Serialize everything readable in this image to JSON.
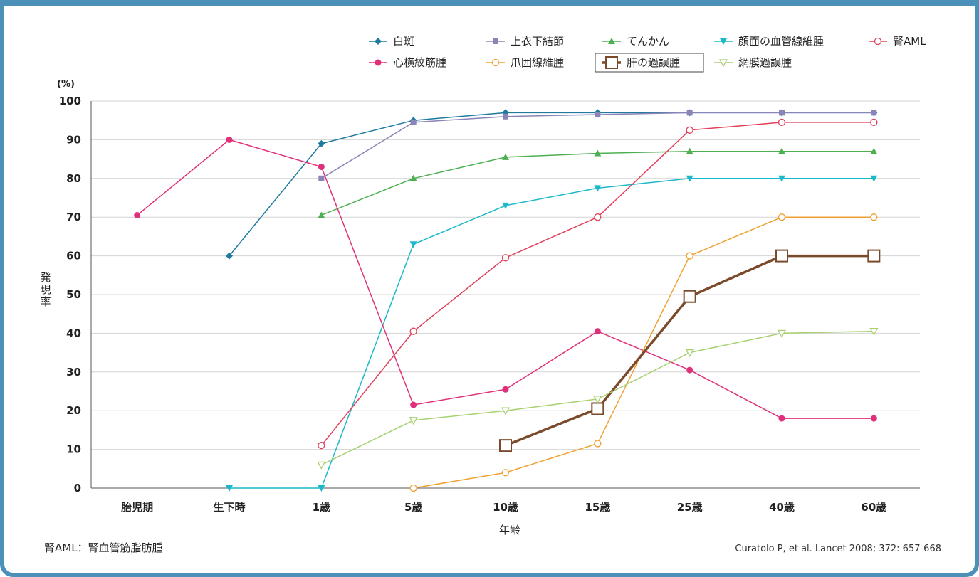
{
  "chart_data": {
    "type": "line",
    "ylabel": "発現率",
    "yunit": "(%)",
    "xlabel": "年齢",
    "ylim": [
      0,
      100
    ],
    "yticks": [
      0,
      10,
      20,
      30,
      40,
      50,
      60,
      70,
      80,
      90,
      100
    ],
    "categories": [
      "胎児期",
      "生下時",
      "1歳",
      "5歳",
      "10歳",
      "15歳",
      "25歳",
      "40歳",
      "60歳"
    ],
    "legend_position": "top-right",
    "series": [
      {
        "name": "白斑",
        "color": "#1f7a9e",
        "marker": "diamond",
        "values": [
          null,
          60,
          89,
          95,
          97,
          97,
          97,
          97,
          97
        ]
      },
      {
        "name": "上衣下結節",
        "color": "#8a84b8",
        "marker": "square",
        "values": [
          null,
          null,
          80,
          94.5,
          96,
          96.5,
          97,
          97,
          97
        ]
      },
      {
        "name": "てんかん",
        "color": "#4caf50",
        "marker": "triangle-up",
        "values": [
          null,
          null,
          70.5,
          80,
          85.5,
          86.5,
          87,
          87,
          87
        ]
      },
      {
        "name": "顔面の血管線維腫",
        "color": "#1ab8c9",
        "marker": "triangle-down",
        "values": [
          null,
          0,
          0,
          63,
          73,
          77.5,
          80,
          80,
          80
        ]
      },
      {
        "name": "腎AML",
        "color": "#e0405a",
        "marker": "circle-open",
        "values": [
          null,
          null,
          11,
          40.5,
          59.5,
          70,
          92.5,
          94.5,
          94.5
        ]
      },
      {
        "name": "心横紋筋腫",
        "color": "#e0307a",
        "marker": "circle",
        "values": [
          70.5,
          90,
          83,
          21.5,
          25.5,
          40.5,
          30.5,
          18,
          18
        ]
      },
      {
        "name": "爪囲線維腫",
        "color": "#f0a030",
        "marker": "circle-open",
        "values": [
          null,
          null,
          null,
          0,
          4,
          11.5,
          60,
          70,
          70
        ]
      },
      {
        "name": "肝の過誤腫",
        "color": "#7a4a2a",
        "marker": "square-open-large",
        "values": [
          null,
          null,
          null,
          null,
          11,
          20.5,
          49.5,
          60,
          60
        ]
      },
      {
        "name": "網膜過誤腫",
        "color": "#a8d070",
        "marker": "triangle-down-open",
        "values": [
          null,
          null,
          6,
          17.5,
          20,
          23,
          35,
          40,
          40.5
        ]
      }
    ]
  },
  "footnote": "腎AML：腎血管筋脂肪腫",
  "citation": "Curatolo P, et al. Lancet 2008; 372: 657-668"
}
